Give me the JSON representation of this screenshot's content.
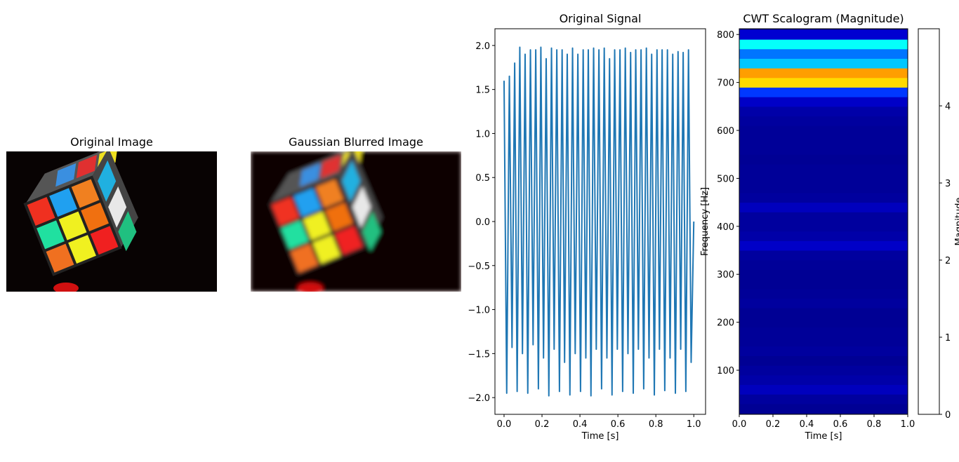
{
  "chart_data": [
    {
      "type": "image",
      "title": "Original Image"
    },
    {
      "type": "image",
      "title": "Gaussian Blurred Image",
      "blur": true
    },
    {
      "type": "line",
      "title": "Original Signal",
      "xlabel": "Time [s]",
      "color": "#1f77b4",
      "x": [
        0,
        0.014,
        0.028,
        0.042,
        0.056,
        0.069,
        0.083,
        0.097,
        0.111,
        0.125,
        0.139,
        0.153,
        0.167,
        0.181,
        0.194,
        0.208,
        0.222,
        0.236,
        0.25,
        0.264,
        0.278,
        0.292,
        0.306,
        0.319,
        0.333,
        0.347,
        0.361,
        0.375,
        0.389,
        0.403,
        0.417,
        0.431,
        0.444,
        0.458,
        0.472,
        0.486,
        0.5,
        0.514,
        0.528,
        0.542,
        0.556,
        0.569,
        0.583,
        0.597,
        0.611,
        0.625,
        0.639,
        0.653,
        0.667,
        0.681,
        0.694,
        0.708,
        0.722,
        0.736,
        0.75,
        0.764,
        0.778,
        0.792,
        0.806,
        0.819,
        0.833,
        0.847,
        0.861,
        0.875,
        0.889,
        0.903,
        0.917,
        0.931,
        0.944,
        0.958,
        0.972,
        0.986,
        1.0
      ],
      "values": [
        1.6,
        -1.95,
        1.65,
        -1.43,
        1.8,
        -1.93,
        1.98,
        -1.5,
        1.9,
        -1.95,
        1.95,
        -1.4,
        1.95,
        -1.9,
        1.98,
        -1.55,
        1.85,
        -1.98,
        1.97,
        -1.45,
        1.95,
        -1.93,
        1.95,
        -1.6,
        1.9,
        -1.97,
        1.97,
        -1.5,
        1.9,
        -1.93,
        1.95,
        -1.55,
        1.95,
        -1.98,
        1.97,
        -1.45,
        1.95,
        -1.9,
        1.97,
        -1.55,
        1.85,
        -1.97,
        1.95,
        -1.45,
        1.95,
        -1.93,
        1.97,
        -1.5,
        1.92,
        -1.95,
        1.95,
        -1.45,
        1.95,
        -1.9,
        1.97,
        -1.55,
        1.9,
        -1.97,
        1.95,
        -1.45,
        1.95,
        -1.92,
        1.95,
        -1.55,
        1.9,
        -1.95,
        1.93,
        -1.45,
        1.92,
        -1.93,
        1.95,
        -1.6,
        0.0
      ],
      "xlim": [
        -0.048,
        1.062
      ],
      "ylim": [
        -2.19,
        2.19
      ],
      "xticks": [
        {
          "value": 0,
          "label": "0.0"
        },
        {
          "value": 0.2,
          "label": "0.2"
        },
        {
          "value": 0.4,
          "label": "0.4"
        },
        {
          "value": 0.6,
          "label": "0.6"
        },
        {
          "value": 0.8,
          "label": "0.8"
        },
        {
          "value": 1,
          "label": "1.0"
        }
      ],
      "yticks": [
        {
          "value": -2,
          "label": "−2.0"
        },
        {
          "value": -1.5,
          "label": "−1.5"
        },
        {
          "value": -1,
          "label": "−1.0"
        },
        {
          "value": -0.5,
          "label": "−0.5"
        },
        {
          "value": 0,
          "label": "0.0"
        },
        {
          "value": 0.5,
          "label": "0.5"
        },
        {
          "value": 1,
          "label": "1.0"
        },
        {
          "value": 1.5,
          "label": "1.5"
        },
        {
          "value": 2,
          "label": "2.0"
        }
      ]
    },
    {
      "type": "heatmap",
      "title": "CWT Scalogram (Magnitude)",
      "xlabel": "Time [s]",
      "ylabel": "Frequency [Hz]",
      "colormap": "jet",
      "xlim": [
        0,
        1
      ],
      "ylim": [
        8,
        812
      ],
      "xticks": [
        {
          "value": 0,
          "label": "0.0"
        },
        {
          "value": 0.2,
          "label": "0.2"
        },
        {
          "value": 0.4,
          "label": "0.4"
        },
        {
          "value": 0.6,
          "label": "0.6"
        },
        {
          "value": 0.8,
          "label": "0.8"
        },
        {
          "value": 1,
          "label": "1.0"
        }
      ],
      "yticks": [
        100,
        200,
        300,
        400,
        500,
        600,
        700,
        800
      ],
      "y": [
        20,
        40,
        60,
        80,
        100,
        120,
        140,
        160,
        180,
        200,
        220,
        240,
        260,
        280,
        300,
        320,
        340,
        360,
        380,
        400,
        420,
        440,
        460,
        480,
        500,
        520,
        540,
        560,
        580,
        600,
        620,
        640,
        660,
        680,
        700,
        720,
        740,
        760,
        780,
        800
      ],
      "values": [
        0.1,
        0.15,
        0.3,
        0.2,
        0.15,
        0.1,
        0.15,
        0.12,
        0.12,
        0.1,
        0.1,
        0.15,
        0.12,
        0.1,
        0.1,
        0.12,
        0.15,
        0.35,
        0.2,
        0.15,
        0.15,
        0.3,
        0.15,
        0.12,
        0.12,
        0.12,
        0.1,
        0.12,
        0.12,
        0.12,
        0.15,
        0.2,
        0.35,
        0.9,
        3.3,
        3.6,
        1.6,
        1.2,
        1.9,
        0.4
      ],
      "colorbar": {
        "label": "Magnitude",
        "lim": [
          0,
          5
        ],
        "ticks": [
          0,
          1,
          2,
          3,
          4
        ]
      }
    }
  ]
}
